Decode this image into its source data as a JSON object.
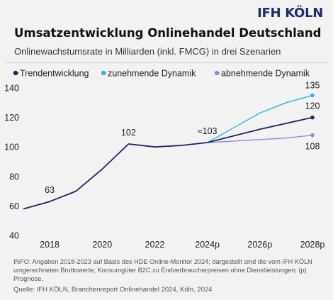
{
  "brand": "IFH KÖLN",
  "header": {
    "title": "Umsatzentwicklung Onlinehandel Deutschland",
    "subtitle": "Onlinewachstumsrate in Milliarden (inkl. FMCG) in drei Szenarien"
  },
  "chart_data": {
    "type": "line",
    "title": "Umsatzentwicklung Onlinehandel Deutschland",
    "subtitle": "Onlinewachstumsrate in Milliarden (inkl. FMCG) in drei Szenarien",
    "xlim": [
      2017,
      2028
    ],
    "ylim": [
      40,
      140
    ],
    "x_ticks": [
      {
        "value": 2018,
        "label": "2018"
      },
      {
        "value": 2020,
        "label": "2020"
      },
      {
        "value": 2022,
        "label": "2022"
      },
      {
        "value": 2024,
        "label": "2024p"
      },
      {
        "value": 2026,
        "label": "2026p"
      },
      {
        "value": 2028,
        "label": "2028p"
      }
    ],
    "y_ticks": [
      40,
      60,
      80,
      100,
      120,
      140
    ],
    "grid": false,
    "legend_position": "top",
    "series": [
      {
        "name": "Trendentwicklung",
        "color": "#1f2566",
        "points": [
          [
            2017,
            58
          ],
          [
            2018,
            63
          ],
          [
            2019,
            70
          ],
          [
            2020,
            85
          ],
          [
            2021,
            102
          ],
          [
            2022,
            100
          ],
          [
            2023,
            101
          ],
          [
            2024,
            103
          ],
          [
            2026,
            112
          ],
          [
            2028,
            120
          ]
        ],
        "end_marker": true
      },
      {
        "name": "zunehmende Dynamik",
        "color": "#3aaee6",
        "points": [
          [
            2024,
            103
          ],
          [
            2025,
            113
          ],
          [
            2026,
            123
          ],
          [
            2027,
            130
          ],
          [
            2028,
            135
          ]
        ],
        "end_marker": true
      },
      {
        "name": "abnehmende Dynamik",
        "color": "#9a86d4",
        "points": [
          [
            2024,
            103
          ],
          [
            2026,
            105
          ],
          [
            2027,
            106
          ],
          [
            2028,
            108
          ]
        ],
        "end_marker": true
      }
    ],
    "data_labels": [
      {
        "x": 2018,
        "y": 63,
        "text": "63"
      },
      {
        "x": 2021,
        "y": 102,
        "text": "102"
      },
      {
        "x": 2024,
        "y": 103,
        "text": "≈103"
      },
      {
        "x": 2028,
        "y": 135,
        "text": "135"
      },
      {
        "x": 2028,
        "y": 120,
        "text": "120"
      },
      {
        "x": 2028,
        "y": 108,
        "text": "108"
      }
    ]
  },
  "footnote": "INFO: Angaben 2018-2023 auf Basis des HDE Online-Monitor 2024; dargestellt sind die vom IFH KÖLN umgerechneten Bruttowerte; Konsumgüter B2C zu Endverbraucherpreisen ohne Dienstleistungen; (p) Prognose.",
  "source": "Quelle: IFH KÖLN, Branchenreport Onlinehandel 2024, Köln, 2024"
}
